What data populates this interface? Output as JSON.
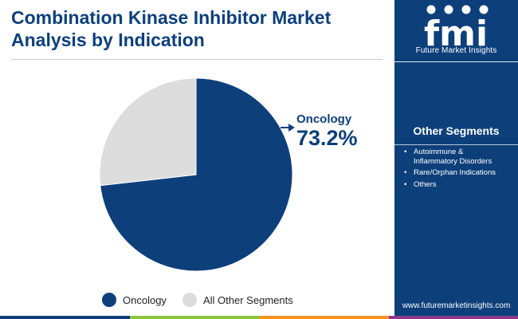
{
  "header": {
    "title_line1": "Combination Kinase Inhibitor Market",
    "title_line2": "Analysis by Indication"
  },
  "brand": {
    "logo_text": "fmi",
    "name": "Future Market Insights",
    "url": "www.futuremarketinsights.com",
    "logo_icons": [
      "car-icon",
      "globe-icon",
      "food-icon",
      "person-icon"
    ]
  },
  "sidebar": {
    "heading": "Other Segments",
    "bullet": "•",
    "items": [
      {
        "line1": "Autoimmune &",
        "line2": "Inflammatory Disorders"
      },
      {
        "line1": "Rare/Orphan Indications"
      },
      {
        "line1": "Others"
      }
    ]
  },
  "colors": {
    "primary": "#0d3f7a",
    "secondary": "#dcdcdc",
    "bar": [
      "#0d3f7a",
      "#8cc63f",
      "#f7941d",
      "#8e3b8f"
    ]
  },
  "chart_data": {
    "type": "pie",
    "title": "Combination Kinase Inhibitor Market Analysis by Indication",
    "slices": [
      {
        "label": "Oncology",
        "value": 73.2,
        "display": "73.2%",
        "color": "#0d3f7a"
      },
      {
        "label": "All Other Segments",
        "value": 26.8,
        "color": "#dcdcdc"
      }
    ],
    "callout": {
      "label": "Oncology",
      "value_text": "73.2%"
    },
    "legend": {
      "position": "bottom",
      "entries": [
        "Oncology",
        "All Other Segments"
      ]
    }
  }
}
